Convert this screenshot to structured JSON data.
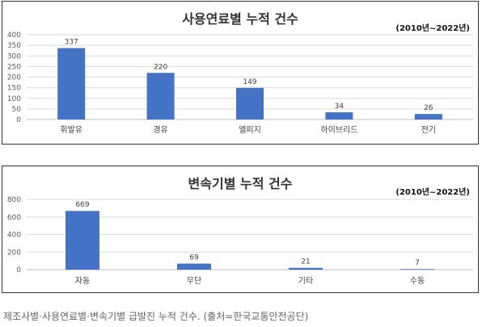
{
  "caption": "제조사별·사용연료별·변속기별 급발진 누적 건수. (출처=한국교통안전공단)",
  "colors": {
    "bar": "#4472C4",
    "grid": "#d9d9d9",
    "axis_text": "#595959"
  },
  "chart_data": [
    {
      "type": "bar",
      "title": "사용연료별 누적 건수",
      "subtitle": "(2010년~2022년)",
      "xlabel": "",
      "ylabel": "",
      "categories": [
        "휘발유",
        "경유",
        "엘피지",
        "하이브리드",
        "전기"
      ],
      "values": [
        337,
        220,
        149,
        34,
        26
      ],
      "ylim": [
        0,
        400
      ],
      "yticks": [
        0,
        50,
        100,
        150,
        200,
        250,
        300,
        350,
        400
      ],
      "grid": true
    },
    {
      "type": "bar",
      "title": "변속기별 누적 건수",
      "subtitle": "(2010년~2022년)",
      "xlabel": "",
      "ylabel": "",
      "categories": [
        "자동",
        "무단",
        "기타",
        "수동"
      ],
      "values": [
        669,
        69,
        21,
        7
      ],
      "ylim": [
        0,
        800
      ],
      "yticks": [
        0,
        200,
        400,
        600,
        800
      ],
      "grid": true
    }
  ]
}
